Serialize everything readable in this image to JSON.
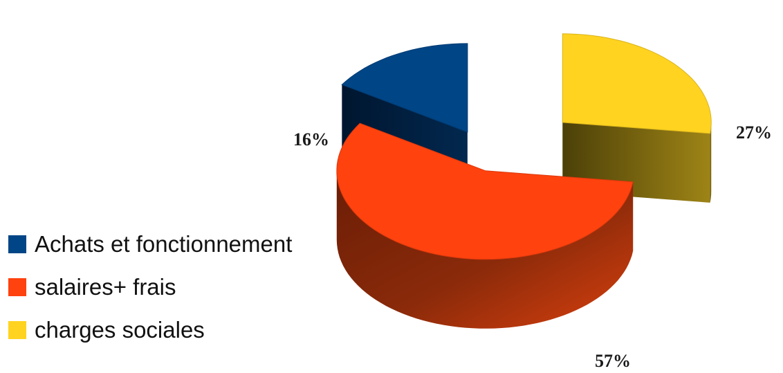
{
  "chart_data": {
    "type": "pie",
    "style": "3d-exploded",
    "categories": [
      "Achats et fonctionnement",
      "salaires+ frais",
      "charges sociales"
    ],
    "values": [
      16,
      57,
      27
    ],
    "labels": [
      "16%",
      "57%",
      "27%"
    ],
    "colors": [
      "#004586",
      "#ff420e",
      "#ffd320"
    ],
    "legend_position": "left"
  }
}
